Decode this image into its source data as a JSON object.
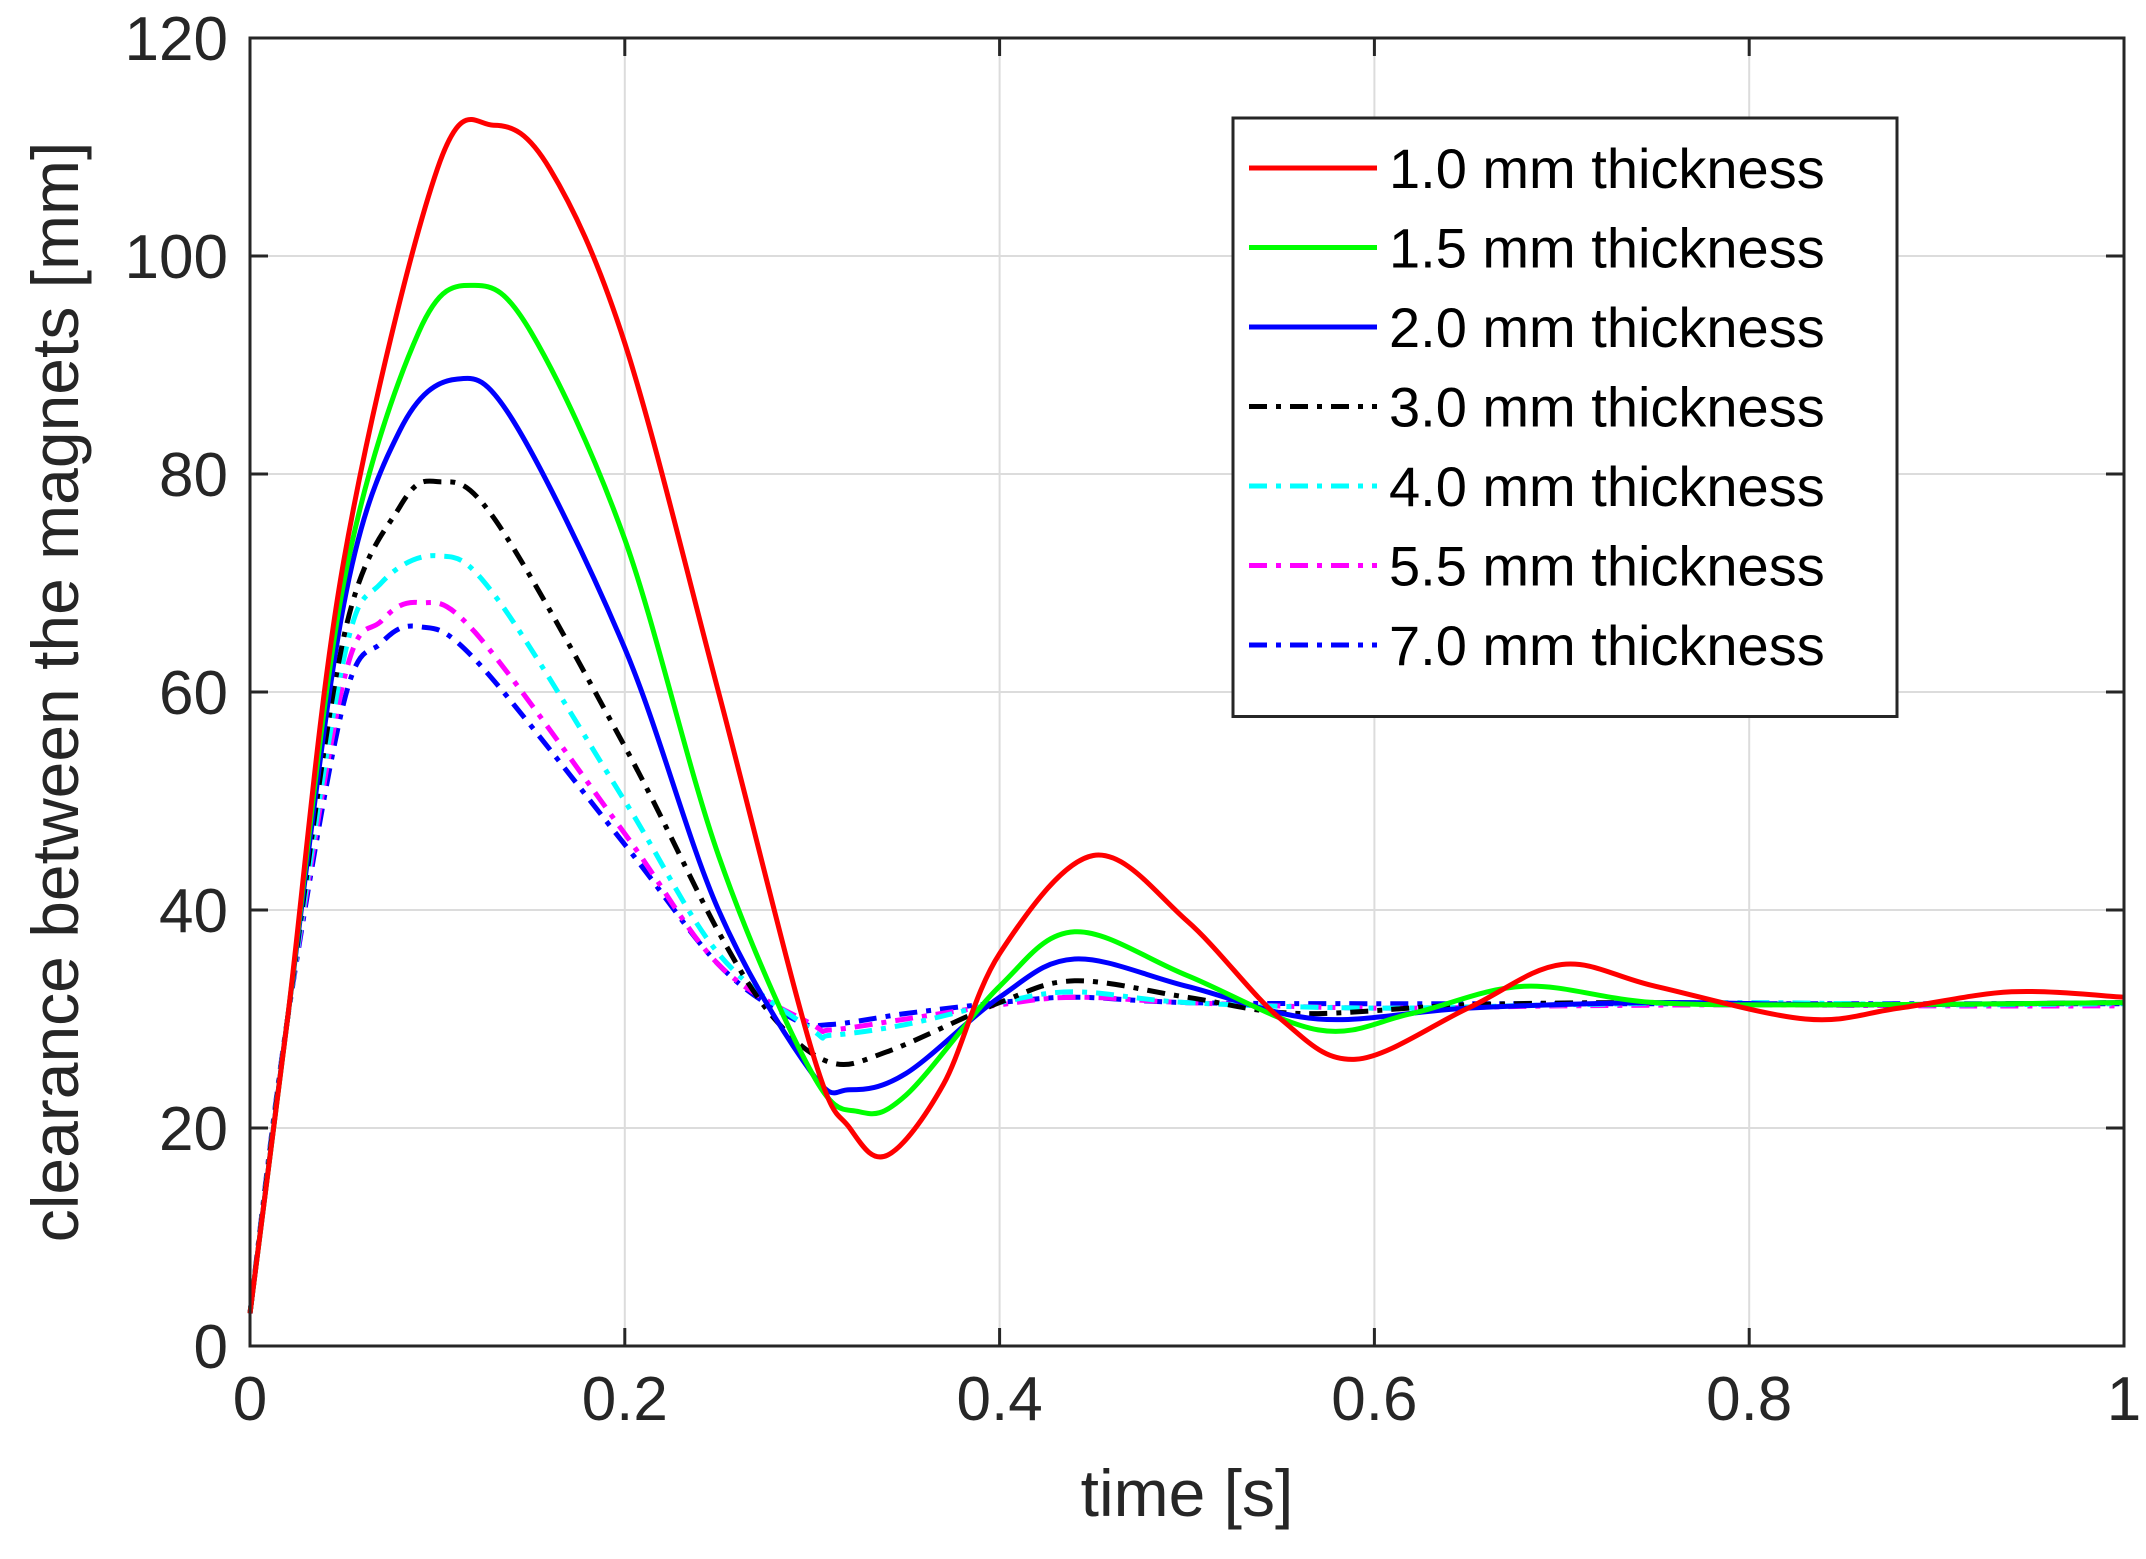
{
  "chart_data": {
    "type": "line",
    "title": "",
    "xlabel": "time [s]",
    "ylabel": "clearance between the magnets [mm]",
    "xlim": [
      0,
      1
    ],
    "ylim": [
      0,
      120
    ],
    "xticks": [
      0,
      0.2,
      0.4,
      0.6,
      0.8,
      1
    ],
    "xtick_labels": [
      "0",
      "0.2",
      "0.4",
      "0.6",
      "0.8",
      "1"
    ],
    "yticks": [
      0,
      20,
      40,
      60,
      80,
      100,
      120
    ],
    "ytick_labels": [
      "0",
      "20",
      "40",
      "60",
      "80",
      "100",
      "120"
    ],
    "grid": true,
    "legend_position": "top-right",
    "series": [
      {
        "name": "1.0 mm thickness",
        "color": "#ff0000",
        "style": "solid",
        "x": [
          0,
          0.02,
          0.05,
          0.1,
          0.13,
          0.16,
          0.2,
          0.25,
          0.3,
          0.32,
          0.34,
          0.37,
          0.4,
          0.45,
          0.5,
          0.55,
          0.59,
          0.65,
          0.7,
          0.75,
          0.83,
          0.88,
          0.94,
          1.0
        ],
        "y": [
          3,
          30,
          72,
          108,
          112,
          108,
          92,
          60,
          27,
          20,
          17.5,
          24,
          36,
          45,
          39,
          30,
          26.3,
          31,
          35,
          33,
          30,
          31,
          32.5,
          32
        ]
      },
      {
        "name": "1.5 mm thickness",
        "color": "#00ff00",
        "style": "solid",
        "x": [
          0,
          0.02,
          0.05,
          0.09,
          0.12,
          0.15,
          0.2,
          0.25,
          0.3,
          0.325,
          0.35,
          0.4,
          0.44,
          0.5,
          0.57,
          0.62,
          0.68,
          0.75,
          0.85,
          1.0
        ],
        "y": [
          3,
          30,
          70,
          93,
          97.3,
          93,
          74,
          45,
          25,
          21.5,
          23,
          33,
          38,
          34,
          29,
          30.5,
          33,
          31.5,
          31.3,
          31.5
        ]
      },
      {
        "name": "2.0 mm thickness",
        "color": "#0000ff",
        "style": "solid",
        "x": [
          0,
          0.02,
          0.05,
          0.08,
          0.11,
          0.14,
          0.2,
          0.25,
          0.3,
          0.32,
          0.35,
          0.4,
          0.44,
          0.5,
          0.57,
          0.65,
          0.75,
          0.85,
          1.0
        ],
        "y": [
          3,
          30,
          68,
          84,
          88.7,
          85,
          64,
          40,
          25,
          23.5,
          25,
          32,
          35.5,
          33,
          30,
          31,
          31.5,
          31.3,
          31.5
        ]
      },
      {
        "name": "3.0 mm thickness",
        "color": "#000000",
        "style": "dashdot",
        "x": [
          0,
          0.02,
          0.05,
          0.08,
          0.1,
          0.13,
          0.2,
          0.25,
          0.28,
          0.31,
          0.34,
          0.4,
          0.44,
          0.5,
          0.56,
          0.65,
          0.75,
          0.85,
          1.0
        ],
        "y": [
          3,
          30,
          65,
          77,
          79.3,
          76,
          55,
          38,
          30,
          26,
          27,
          31.5,
          33.5,
          32,
          30.5,
          31.3,
          31.5,
          31.3,
          31.5
        ]
      },
      {
        "name": "4.0 mm thickness",
        "color": "#00ffff",
        "style": "dashdot",
        "x": [
          0,
          0.02,
          0.05,
          0.07,
          0.1,
          0.13,
          0.2,
          0.25,
          0.3,
          0.31,
          0.35,
          0.4,
          0.44,
          0.5,
          0.6,
          0.7,
          0.8,
          0.9,
          1.0
        ],
        "y": [
          3,
          30,
          63,
          70,
          72.5,
          69,
          50,
          36,
          29,
          28.5,
          29.5,
          31.5,
          32.5,
          31.5,
          31,
          31.3,
          31.5,
          31.3,
          31.4
        ]
      },
      {
        "name": "5.5 mm thickness",
        "color": "#ff00ff",
        "style": "dashdot",
        "x": [
          0,
          0.02,
          0.05,
          0.07,
          0.09,
          0.12,
          0.2,
          0.25,
          0.3,
          0.31,
          0.35,
          0.4,
          0.44,
          0.5,
          0.6,
          0.7,
          0.8,
          0.9,
          1.0
        ],
        "y": [
          3,
          30,
          61,
          66.5,
          68.2,
          65.5,
          47,
          35,
          29.5,
          29,
          30,
          31.3,
          32,
          31.5,
          31,
          31.2,
          31.3,
          31.2,
          31.2
        ]
      },
      {
        "name": "7.0 mm thickness",
        "color": "#0000ff",
        "style": "dashdot",
        "x": [
          0,
          0.02,
          0.05,
          0.07,
          0.09,
          0.12,
          0.2,
          0.25,
          0.29,
          0.31,
          0.35,
          0.4,
          0.44,
          0.5,
          0.6,
          0.7,
          0.8,
          0.9,
          1.0
        ],
        "y": [
          3,
          30,
          59,
          64.5,
          66,
          63,
          46,
          35,
          30,
          29.5,
          30.5,
          31.5,
          32,
          31.5,
          31.4,
          31.4,
          31.4,
          31.4,
          31.4
        ]
      }
    ]
  }
}
